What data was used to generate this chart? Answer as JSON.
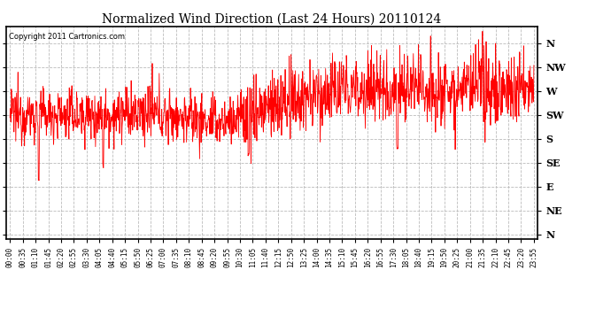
{
  "title": "Normalized Wind Direction (Last 24 Hours) 20110124",
  "copyright_text": "Copyright 2011 Cartronics.com",
  "line_color": "#ff0000",
  "bg_color": "#ffffff",
  "grid_color": "#aaaaaa",
  "y_labels": [
    "N",
    "NW",
    "W",
    "SW",
    "S",
    "SE",
    "E",
    "NE",
    "N"
  ],
  "y_values": [
    8,
    7,
    6,
    5,
    4,
    3,
    2,
    1,
    0
  ],
  "x_tick_labels": [
    "00:00",
    "00:35",
    "01:10",
    "01:45",
    "02:20",
    "02:55",
    "03:30",
    "04:05",
    "04:40",
    "05:15",
    "05:50",
    "06:25",
    "07:00",
    "07:35",
    "08:10",
    "08:45",
    "09:20",
    "09:55",
    "10:30",
    "11:05",
    "11:40",
    "12:15",
    "12:50",
    "13:25",
    "14:00",
    "14:35",
    "15:10",
    "15:45",
    "16:20",
    "16:55",
    "17:30",
    "18:05",
    "18:40",
    "19:15",
    "19:50",
    "20:25",
    "21:00",
    "21:35",
    "22:10",
    "22:45",
    "23:20",
    "23:55"
  ],
  "n_points": 1440,
  "figwidth": 6.9,
  "figheight": 3.75,
  "dpi": 100
}
